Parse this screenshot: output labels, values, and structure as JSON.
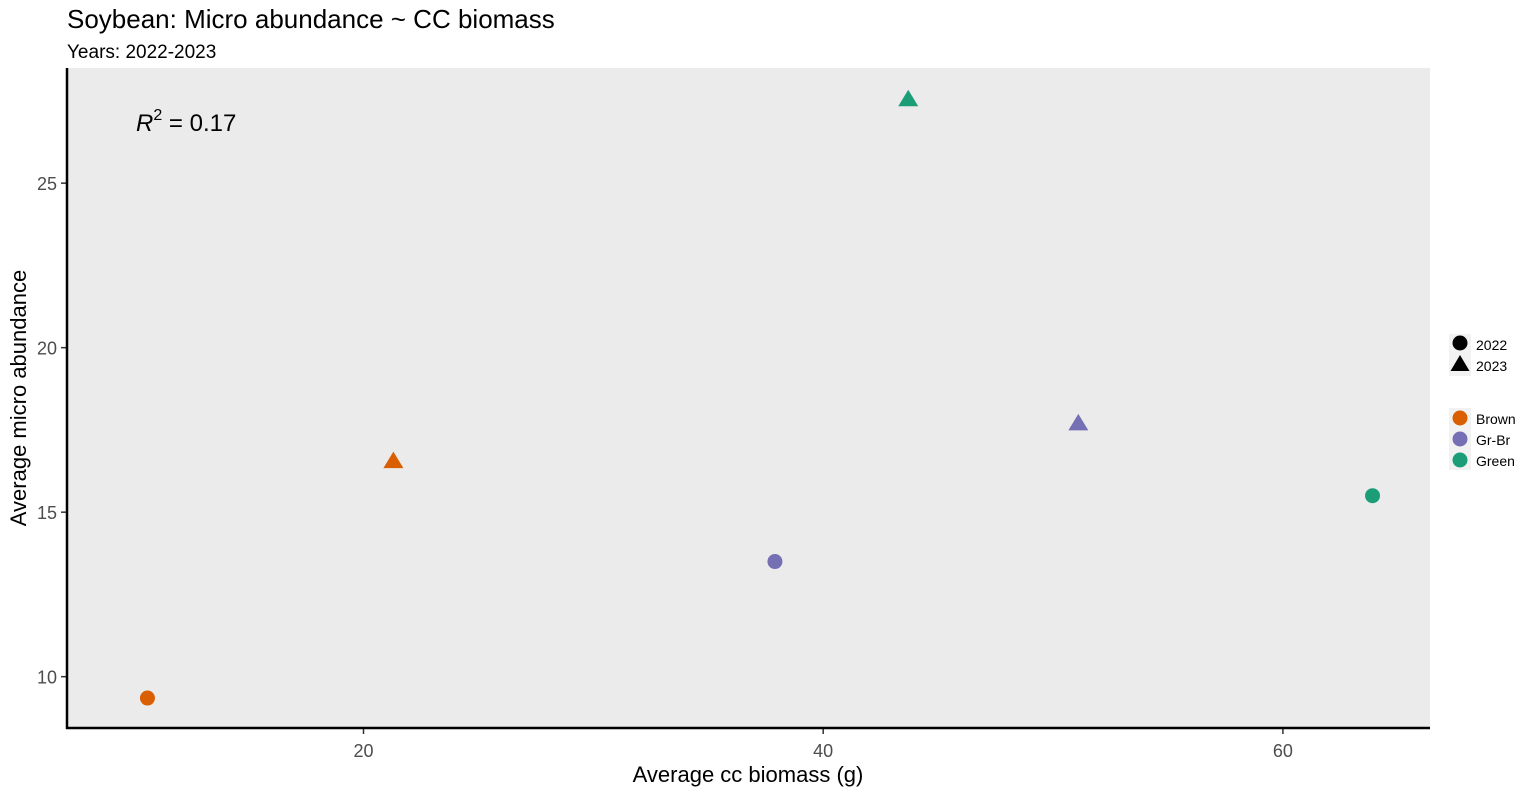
{
  "chart_data": {
    "type": "scatter",
    "title": "Soybean: Micro abundance ~ CC biomass",
    "subtitle": "Years: 2022-2023",
    "xlabel": "Average cc biomass (g)",
    "ylabel": "Average micro abundance",
    "xlim": [
      7.1,
      66.4
    ],
    "ylim": [
      8.44,
      28.5
    ],
    "xticks": [
      20,
      40,
      60
    ],
    "yticks": [
      10,
      15,
      20,
      25
    ],
    "grid": false,
    "panel_background": "#ebebeb",
    "annotation": {
      "prefix": "R",
      "superscript": "2",
      "text": " = 0.17"
    },
    "legend_shape": {
      "position": "right",
      "entries": [
        {
          "label": "2022",
          "shape": "circle"
        },
        {
          "label": "2023",
          "shape": "triangle"
        }
      ]
    },
    "legend_color": {
      "position": "right",
      "entries": [
        {
          "label": "Brown",
          "color": "#d95f02"
        },
        {
          "label": "Gr-Br",
          "color": "#7570b3"
        },
        {
          "label": "Green",
          "color": "#1b9e77"
        }
      ]
    },
    "points": [
      {
        "x": 10.6,
        "y": 9.35,
        "group": "Brown",
        "year": "2022"
      },
      {
        "x": 21.3,
        "y": 16.55,
        "group": "Brown",
        "year": "2023"
      },
      {
        "x": 37.9,
        "y": 13.5,
        "group": "Gr-Br",
        "year": "2022"
      },
      {
        "x": 51.1,
        "y": 17.7,
        "group": "Gr-Br",
        "year": "2023"
      },
      {
        "x": 63.9,
        "y": 15.5,
        "group": "Green",
        "year": "2022"
      },
      {
        "x": 43.7,
        "y": 27.55,
        "group": "Green",
        "year": "2023"
      }
    ]
  }
}
